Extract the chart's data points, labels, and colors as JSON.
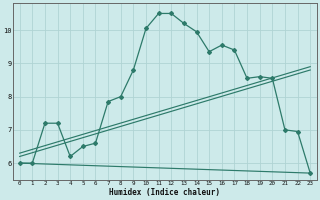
{
  "xlabel": "Humidex (Indice chaleur)",
  "background_color": "#cdeaea",
  "grid_color": "#b0d4d4",
  "line_color": "#2d7a6a",
  "xlim": [
    -0.5,
    23.5
  ],
  "ylim": [
    5.5,
    10.8
  ],
  "yticks": [
    6,
    7,
    8,
    9,
    10
  ],
  "xticks": [
    0,
    1,
    2,
    3,
    4,
    5,
    6,
    7,
    8,
    9,
    10,
    11,
    12,
    13,
    14,
    15,
    16,
    17,
    18,
    19,
    20,
    21,
    22,
    23
  ],
  "curve1_x": [
    0,
    1,
    2,
    3,
    4,
    5,
    6,
    7,
    8,
    9,
    10,
    11,
    12,
    13,
    14,
    15,
    16,
    17,
    18,
    19,
    20,
    21,
    22,
    23
  ],
  "curve1_y": [
    6.0,
    6.0,
    7.2,
    7.2,
    6.2,
    6.5,
    6.6,
    7.85,
    8.0,
    8.8,
    10.05,
    10.5,
    10.5,
    10.2,
    9.95,
    9.35,
    9.55,
    9.4,
    8.55,
    8.6,
    8.55,
    7.0,
    6.95,
    5.7
  ],
  "line1_x": [
    0,
    23
  ],
  "line1_y": [
    6.0,
    5.7
  ],
  "line2_x": [
    0,
    23
  ],
  "line2_y": [
    6.2,
    8.8
  ],
  "line3_x": [
    0,
    23
  ],
  "line3_y": [
    6.3,
    8.9
  ]
}
